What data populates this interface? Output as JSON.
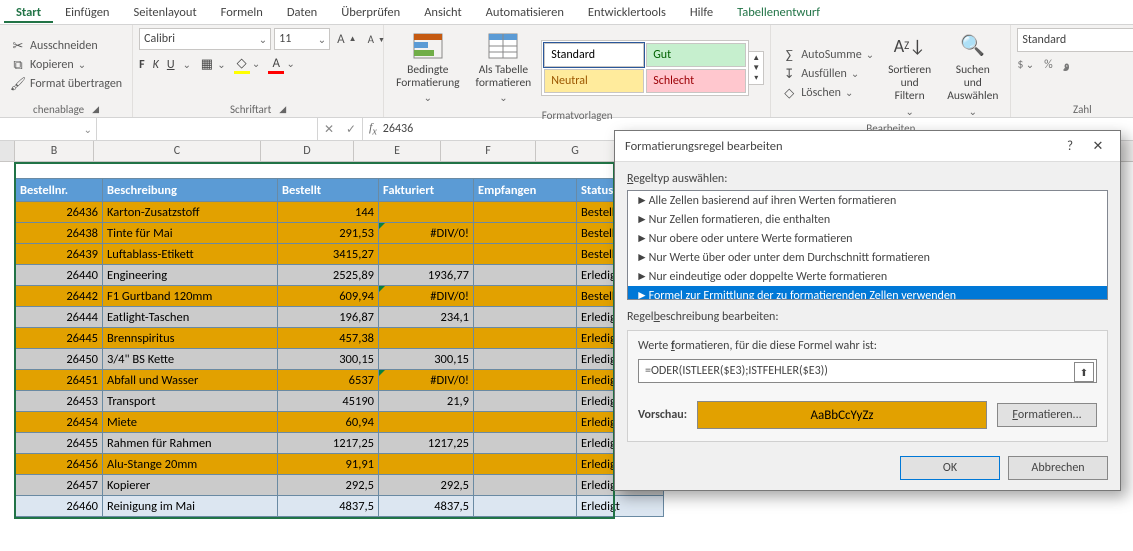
{
  "cols": {
    "row_hdr_w": 14,
    "B_w": 78,
    "C_w": 166,
    "D_w": 92,
    "E_w": 86,
    "F_w": 94,
    "G_w": 78
  },
  "tabs": {
    "items": [
      "Start",
      "Einfügen",
      "Seitenlayout",
      "Formeln",
      "Daten",
      "Überprüfen",
      "Ansicht",
      "Automatisieren",
      "Entwicklertools",
      "Hilfe",
      "Tabellenentwurf"
    ],
    "active_index": 0,
    "context_index": 10
  },
  "ribbon": {
    "clipboard": {
      "cut": "Ausschneiden",
      "copy": "Kopieren",
      "painter": "Format übertragen",
      "label": "chenablage"
    },
    "font": {
      "name": "Calibri",
      "size": "11",
      "bold": "F",
      "italic": "K",
      "underline": "U",
      "label": "Schriftart"
    },
    "styles": {
      "condfmt": "Bedingte\nFormatierung",
      "astable": "Als Tabelle\nformatieren",
      "gallery": [
        "Standard",
        "Gut",
        "Neutral",
        "Schlecht"
      ],
      "gallery_bg": [
        "#ffffff",
        "#c6efce",
        "#ffeb9c",
        "#ffc7ce"
      ],
      "gallery_fg": [
        "#000000",
        "#006100",
        "#9c5700",
        "#9c0006"
      ],
      "label": "Formatvorlagen"
    },
    "editing": {
      "autosum": "AutoSumme",
      "fill": "Ausfüllen",
      "clear": "Löschen",
      "sort": "Sortieren und\nFiltern",
      "find": "Suchen und\nAuswählen",
      "label": "Bearbeiten"
    },
    "number": {
      "format": "Standard",
      "label": "Zahl"
    }
  },
  "fx": {
    "name": "",
    "value": "26436"
  },
  "colors": {
    "header_bg": "#5b9bd5",
    "header_fg": "#ffffff",
    "highlight": "#e2a100",
    "highlight_fg": "#000000",
    "band_even": "#dce6f1",
    "band_odd": "#cbcbcb",
    "sel_border": "#217346"
  },
  "table": {
    "headers": [
      "Bestellnr.",
      "Beschreibung",
      "Bestellt",
      "Fakturiert",
      "Empfangen",
      "Status"
    ],
    "rows": [
      {
        "n": 26436,
        "d": "Karton-Zusatzstoff",
        "b": "144",
        "f": "",
        "e": "",
        "s": "Bestellt",
        "hl": true
      },
      {
        "n": 26438,
        "d": "Tinte für Mai",
        "b": "291,53",
        "f": "#DIV/0!",
        "e": "",
        "s": "Bestellt",
        "hl": true,
        "err": true
      },
      {
        "n": 26439,
        "d": "Luftablass-Etikett",
        "b": "3415,27",
        "f": "",
        "e": "",
        "s": "Bestellt",
        "hl": true
      },
      {
        "n": 26440,
        "d": "Engineering",
        "b": "2525,89",
        "f": "1936,77",
        "e": "",
        "s": "Erledigt",
        "hl": false
      },
      {
        "n": 26442,
        "d": "F1 Gurtband 120mm",
        "b": "609,94",
        "f": "#DIV/0!",
        "e": "",
        "s": "Bestellt",
        "hl": true,
        "err": true
      },
      {
        "n": 26444,
        "d": "Eatlight-Taschen",
        "b": "196,87",
        "f": "234,1",
        "e": "",
        "s": "Erledigt",
        "hl": false
      },
      {
        "n": 26445,
        "d": "Brennspiritus",
        "b": "457,38",
        "f": "",
        "e": "",
        "s": "Erledigt",
        "hl": true
      },
      {
        "n": 26450,
        "d": "3/4\" BS Kette",
        "b": "300,15",
        "f": "300,15",
        "e": "",
        "s": "Erledigt",
        "hl": false
      },
      {
        "n": 26451,
        "d": "Abfall und Wasser",
        "b": "6537",
        "f": "#DIV/0!",
        "e": "",
        "s": "Erledigt",
        "hl": true,
        "err": true
      },
      {
        "n": 26453,
        "d": "Transport",
        "b": "45190",
        "f": "21,9",
        "e": "",
        "s": "Erledigt",
        "hl": false
      },
      {
        "n": 26454,
        "d": "Miete",
        "b": "60,94",
        "f": "",
        "e": "",
        "s": "Erledigt",
        "hl": true
      },
      {
        "n": 26455,
        "d": "Rahmen für Rahmen",
        "b": "1217,25",
        "f": "1217,25",
        "e": "",
        "s": "Erledigt",
        "hl": false
      },
      {
        "n": 26456,
        "d": "Alu-Stange 20mm",
        "b": "91,91",
        "f": "",
        "e": "",
        "s": "Erledigt",
        "hl": true
      },
      {
        "n": 26457,
        "d": "Kopierer",
        "b": "292,5",
        "f": "292,5",
        "e": "",
        "s": "Erledigt",
        "hl": false
      },
      {
        "n": 26460,
        "d": "Reinigung im Mai",
        "b": "4837,5",
        "f": "4837,5",
        "e": "",
        "s": "Erledigt",
        "hl": false
      }
    ]
  },
  "dialog": {
    "title": "Formatierungsregel bearbeiten",
    "sect1": "Regeltyp auswählen:",
    "types": [
      "Alle Zellen basierend auf ihren Werten formatieren",
      "Nur Zellen formatieren, die enthalten",
      "Nur obere oder untere Werte formatieren",
      "Nur Werte über oder unter dem Durchschnitt formatieren",
      "Nur eindeutige oder doppelte Werte formatieren",
      "Formel zur Ermittlung der zu formatierenden Zellen verwenden"
    ],
    "selected_type": 5,
    "sect2": "Regelbeschreibung bearbeiten:",
    "desc_caption_pre": "Werte ",
    "desc_caption_u": "f",
    "desc_caption_post": "ormatieren, für die diese Formel wahr ist:",
    "formula": "=ODER(ISTLEER($E3);ISTFEHLER($E3))",
    "preview_label": "Vorschau:",
    "preview_text": "AaBbCcYyZz",
    "preview_bg": "#e2a100",
    "preview_fg": "#000000",
    "format_btn_pre": "F",
    "format_btn_post": "ormatieren...",
    "ok": "OK",
    "cancel": "Abbrechen"
  }
}
